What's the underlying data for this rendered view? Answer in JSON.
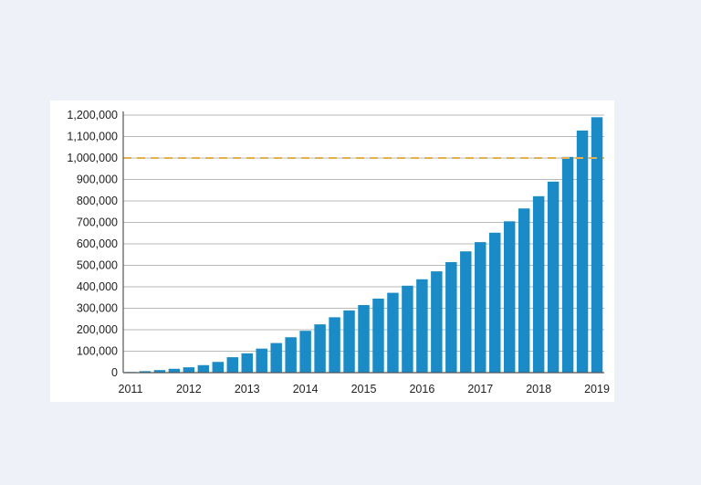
{
  "chart_data": {
    "type": "bar",
    "title": "",
    "xlabel": "",
    "ylabel": "",
    "ylim": [
      0,
      1200000
    ],
    "y_ticks": [
      0,
      100000,
      200000,
      300000,
      400000,
      500000,
      600000,
      700000,
      800000,
      900000,
      1000000,
      1100000,
      1200000
    ],
    "y_tick_labels": [
      "0",
      "100,000",
      "200,000",
      "300,000",
      "400,000",
      "500,000",
      "600,000",
      "700,000",
      "800,000",
      "900,000",
      "1,000,000",
      "1,100,000",
      "1,200,000"
    ],
    "x_tick_labels": [
      "2011",
      "2012",
      "2013",
      "2014",
      "2015",
      "2016",
      "2017",
      "2018",
      "2019"
    ],
    "x_tick_bar_index": [
      0,
      4,
      8,
      12,
      16,
      20,
      24,
      28,
      33
    ],
    "grid": true,
    "reference_line": {
      "value": 1000000,
      "style": "dashed",
      "color": "#e8b04a"
    },
    "bar_color": "#1a8bc6",
    "values": [
      3000,
      7000,
      12000,
      18000,
      25000,
      35000,
      50000,
      72000,
      90000,
      112000,
      138000,
      165000,
      195000,
      225000,
      258000,
      290000,
      315000,
      345000,
      372000,
      405000,
      435000,
      472000,
      515000,
      565000,
      608000,
      652000,
      705000,
      765000,
      822000,
      890000,
      1005000,
      1128000,
      1190000
    ]
  }
}
